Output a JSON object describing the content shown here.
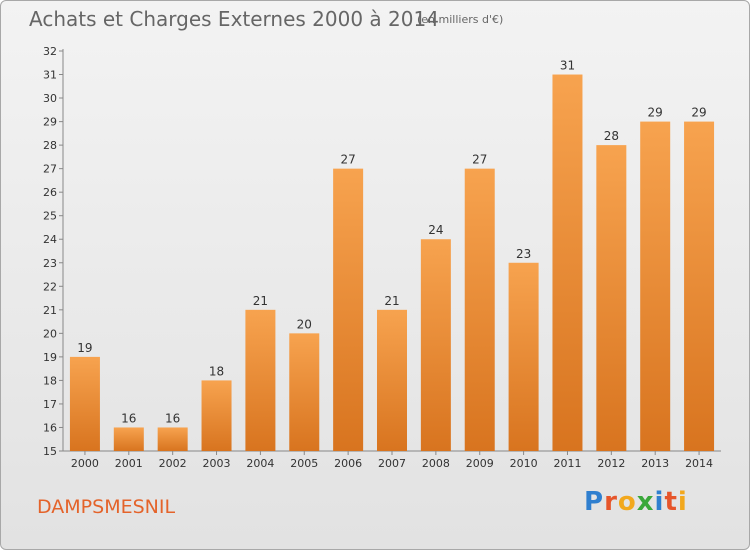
{
  "header": {
    "title": "Achats et Charges Externes 2000 à 2014",
    "subtitle": "(en milliers d'€)"
  },
  "footer": {
    "commune": "DAMPSMESNIL",
    "logo_text": "Proxiti",
    "logo_colors": [
      "#2f7fcf",
      "#e6552a",
      "#f2a81d",
      "#3aa83a",
      "#2f7fcf",
      "#e6552a",
      "#f2a81d"
    ]
  },
  "colors": {
    "bar_top": "#f7a34f",
    "bar_bottom": "#d8741f",
    "axis": "#888888"
  },
  "chart_data": {
    "type": "bar",
    "title": "Achats et Charges Externes 2000 à 2014",
    "subtitle": "(en milliers d'€)",
    "categories": [
      "2000",
      "2001",
      "2002",
      "2003",
      "2004",
      "2005",
      "2006",
      "2007",
      "2008",
      "2009",
      "2010",
      "2011",
      "2012",
      "2013",
      "2014"
    ],
    "values": [
      19,
      16,
      16,
      18,
      21,
      20,
      27,
      21,
      24,
      27,
      23,
      31,
      28,
      29,
      29
    ],
    "ylim": [
      15,
      32
    ],
    "yticks": [
      15,
      16,
      17,
      18,
      19,
      20,
      21,
      22,
      23,
      24,
      25,
      26,
      27,
      28,
      29,
      30,
      31,
      32
    ],
    "grid": false,
    "xlabel": "",
    "ylabel": ""
  }
}
